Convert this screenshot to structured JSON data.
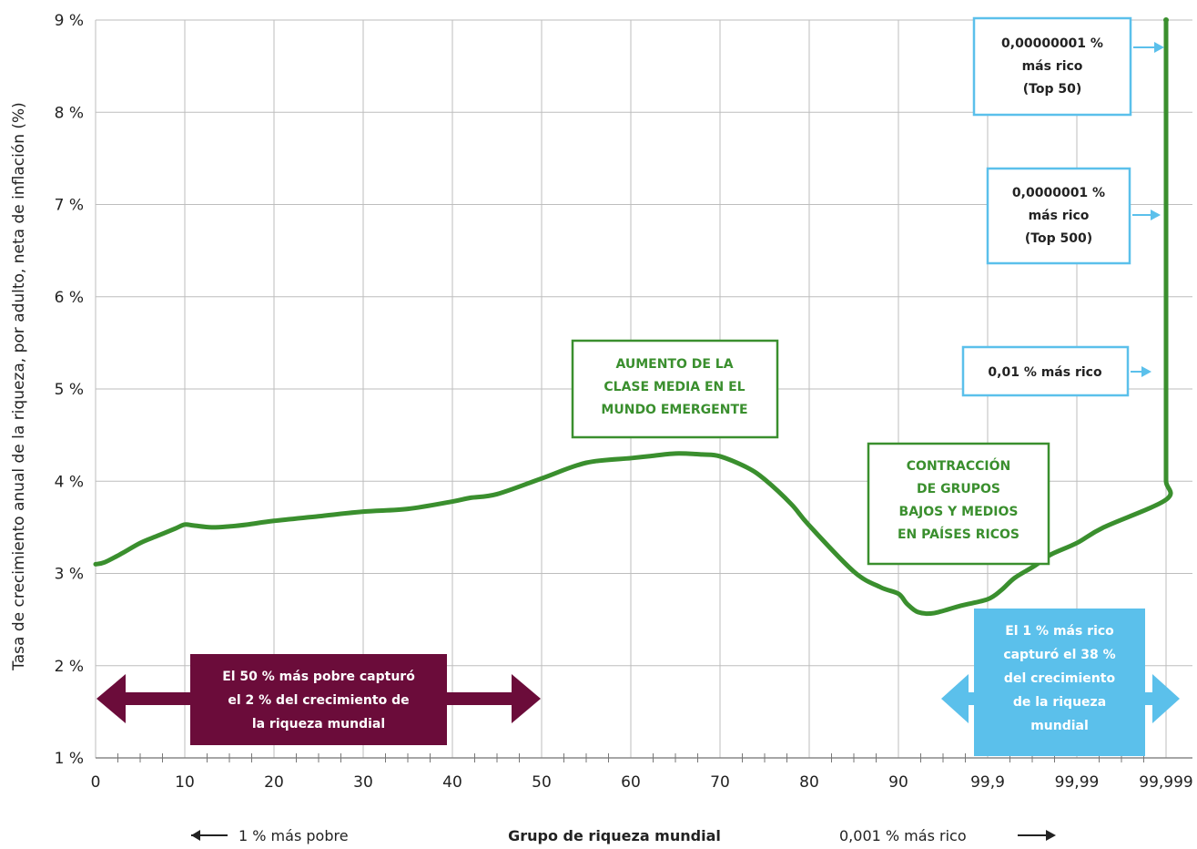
{
  "chart_data": {
    "type": "line",
    "ylabel": "Tasa de crecimiento anual de la riqueza, por adulto, neta de inflación (%)",
    "xlabel": "Grupo de riqueza mundial",
    "xlabel_left": "1 % más pobre",
    "xlabel_right": "0,001 % más rico",
    "ylim": [
      1,
      9
    ],
    "y_ticks": [
      "1 %",
      "2 %",
      "3 %",
      "4 %",
      "5 %",
      "6 %",
      "7 %",
      "8 %",
      "9 %"
    ],
    "x_ticks": [
      "0",
      "10",
      "20",
      "30",
      "40",
      "50",
      "60",
      "70",
      "80",
      "90",
      "99,9",
      "99,99",
      "99,999"
    ],
    "grid": true,
    "series": [
      {
        "color": "#3a8f2e",
        "x": [
          0,
          1,
          3,
          5,
          7,
          9,
          10,
          11,
          13,
          15,
          17,
          20,
          25,
          30,
          35,
          40,
          42,
          45,
          50,
          55,
          60,
          62,
          65,
          68,
          70,
          73,
          75,
          78,
          80,
          85,
          88,
          90,
          92,
          94,
          96,
          98,
          99,
          99.3,
          99.5,
          99.7,
          99.8,
          99.9,
          99.95,
          99.99,
          99.995,
          99.998,
          99.999,
          99.9993,
          99.9995,
          99.9997,
          99.9999,
          99.99995,
          99.99999,
          99.999995
        ],
        "y": [
          3.1,
          3.12,
          3.22,
          3.33,
          3.41,
          3.49,
          3.53,
          3.52,
          3.5,
          3.51,
          3.53,
          3.57,
          3.62,
          3.67,
          3.7,
          3.78,
          3.82,
          3.86,
          4.03,
          4.2,
          4.25,
          4.27,
          4.3,
          4.29,
          4.27,
          4.15,
          4.02,
          3.75,
          3.52,
          3.02,
          2.85,
          2.78,
          2.67,
          2.58,
          2.57,
          2.65,
          2.72,
          2.82,
          2.95,
          3.08,
          3.2,
          3.33,
          3.5,
          3.8,
          4.0,
          4.3,
          5.0,
          5.1,
          5.15,
          5.6,
          6.5,
          7.5,
          8.5,
          9.0
        ]
      }
    ],
    "annotations": [
      {
        "kind": "green-box",
        "lines": [
          "AUMENTO DE LA",
          "CLASE MEDIA EN EL",
          "MUNDO EMERGENTE"
        ]
      },
      {
        "kind": "green-box",
        "lines": [
          "CONTRACCIÓN",
          "DE GRUPOS",
          "BAJOS Y MEDIOS",
          "EN PAÍSES RICOS"
        ]
      },
      {
        "kind": "blue-outline-box",
        "lines": [
          "0,00000001 %",
          "más rico",
          "(Top 50)"
        ]
      },
      {
        "kind": "blue-outline-box",
        "lines": [
          "0,0000001 %",
          "más rico",
          "(Top 500)"
        ]
      },
      {
        "kind": "blue-outline-box",
        "lines": [
          "0,01 % más rico"
        ]
      },
      {
        "kind": "purple-box",
        "lines": [
          "El 50 % más pobre capturó",
          "el 2 % del crecimiento de",
          "la riqueza mundial"
        ]
      },
      {
        "kind": "blue-filled-box",
        "lines": [
          "El 1 % más rico",
          "capturó el 38 %",
          "del crecimiento",
          "de la riqueza",
          "mundial"
        ]
      }
    ]
  },
  "colors": {
    "line": "#3a8f2e",
    "green_text": "#3a8f2e",
    "blue_outline": "#5bc0eb",
    "purple": "#6b0c3a",
    "blue_fill": "#5bc0eb",
    "grid": "#bdbdbd"
  }
}
